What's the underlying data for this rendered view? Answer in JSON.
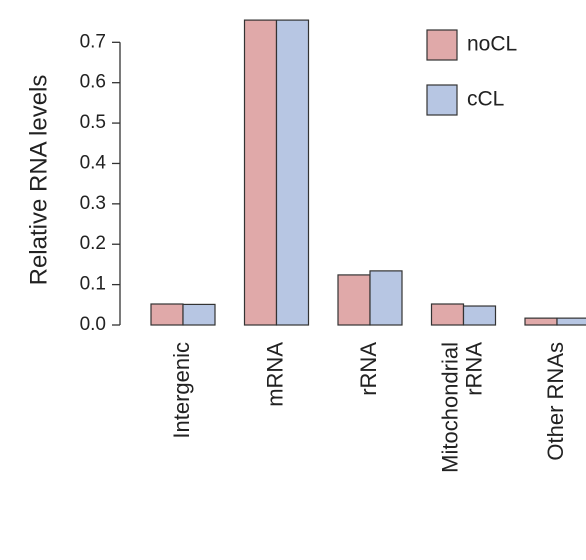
{
  "chart_data": {
    "type": "bar",
    "y_label": "Relative RNA levels",
    "categories": [
      "Intergenic",
      "mRNA",
      "rRNA",
      "Mitochondrial\nrRNA",
      "Other RNAs"
    ],
    "series": [
      {
        "name": "noCL",
        "color": "#e0a9a9",
        "values": [
          0.052,
          0.755,
          0.124,
          0.052,
          0.017
        ]
      },
      {
        "name": "cCL",
        "color": "#b7c6e3",
        "values": [
          0.051,
          0.755,
          0.134,
          0.047,
          0.017
        ]
      }
    ],
    "ylim": [
      0,
      0.78
    ],
    "yticks": [
      {
        "value": 0,
        "label": "0.0"
      },
      0.1,
      0.2,
      0.3,
      0.4,
      0.5,
      0.6,
      0.7
    ],
    "legend": "top-right"
  }
}
